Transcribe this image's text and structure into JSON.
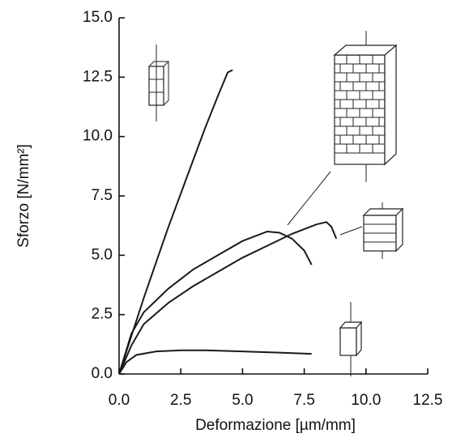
{
  "chart_data": {
    "type": "line",
    "x_label": "Deformazione [µm/mm]",
    "y_label": "Sforzo [N/mm²]",
    "xlim": [
      0,
      12.5
    ],
    "ylim": [
      0,
      15
    ],
    "xticks": [
      {
        "value": 0,
        "label": "0.0"
      },
      2.5,
      {
        "value": 5,
        "label": "5.0"
      },
      7.5,
      {
        "value": 10,
        "label": "10.0"
      },
      12.5
    ],
    "yticks": [
      {
        "value": 0,
        "label": "0.0"
      },
      2.5,
      {
        "value": 5,
        "label": "5.0"
      },
      7.5,
      {
        "value": 10,
        "label": "10.0"
      },
      12.5,
      {
        "value": 15,
        "label": "15.0"
      }
    ],
    "grid": false,
    "series": [
      {
        "color": "#1a1a1a",
        "x": [
          0,
          0.5,
          1,
          1.5,
          2,
          2.5,
          3,
          3.5,
          4,
          4.4,
          4.6
        ],
        "values": [
          0,
          1.6,
          3.2,
          4.7,
          6.2,
          7.6,
          9,
          10.4,
          11.7,
          12.7,
          12.8
        ]
      },
      {
        "color": "#1a1a1a",
        "x": [
          0,
          0.5,
          1,
          2,
          3,
          4,
          5,
          6,
          6.5,
          7,
          7.5,
          7.8
        ],
        "values": [
          0,
          1.7,
          2.6,
          3.6,
          4.4,
          5.0,
          5.6,
          6.0,
          5.95,
          5.7,
          5.2,
          4.6
        ]
      },
      {
        "color": "#1a1a1a",
        "x": [
          0,
          0.5,
          1,
          2,
          3,
          4,
          5,
          6,
          7,
          8,
          8.4,
          8.6,
          8.8
        ],
        "values": [
          0,
          1.2,
          2.1,
          3.0,
          3.7,
          4.3,
          4.9,
          5.4,
          5.9,
          6.3,
          6.4,
          6.2,
          5.7
        ]
      },
      {
        "color": "#1a1a1a",
        "x": [
          0,
          0.3,
          0.7,
          1.5,
          2.5,
          3.5,
          5,
          6.5,
          7.8
        ],
        "values": [
          0,
          0.5,
          0.8,
          0.95,
          1.0,
          1.0,
          0.95,
          0.9,
          0.85
        ]
      }
    ]
  }
}
